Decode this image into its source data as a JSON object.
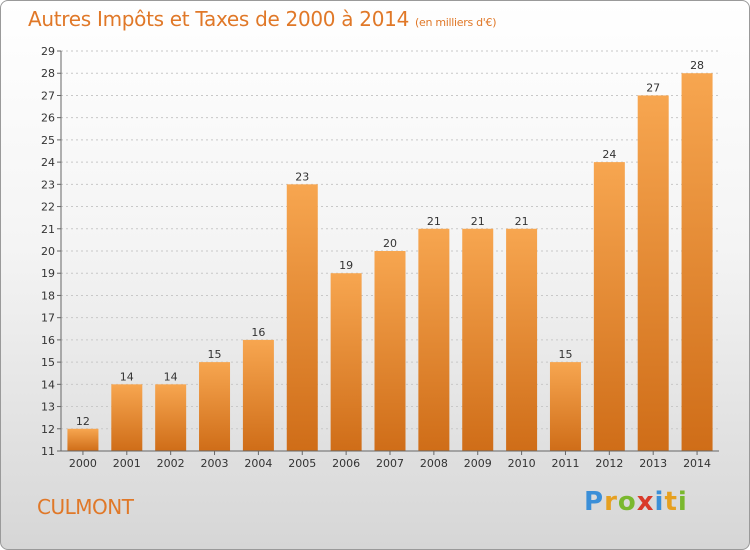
{
  "title": "Autres Impôts et Taxes de 2000 à 2014",
  "unit": "(en milliers d'€)",
  "place": "CULMONT",
  "logo": {
    "letters": [
      "P",
      "r",
      "o",
      "x",
      "i",
      "t",
      "i"
    ],
    "colors": [
      "#3b8fd8",
      "#e6a020",
      "#7ab82e",
      "#d93a2a",
      "#3b8fd8",
      "#e6a020",
      "#7ab82e"
    ]
  },
  "colors": {
    "bar_top": "#f7a650",
    "bar_bottom": "#cf6d18",
    "text": "#e07828"
  },
  "chart_data": {
    "type": "bar",
    "title": "Autres Impôts et Taxes de 2000 à 2014",
    "subtitle": "(en milliers d'€)",
    "categories": [
      "2000",
      "2001",
      "2002",
      "2003",
      "2004",
      "2005",
      "2006",
      "2007",
      "2008",
      "2009",
      "2010",
      "2011",
      "2012",
      "2013",
      "2014"
    ],
    "values": [
      12,
      14,
      14,
      15,
      16,
      23,
      19,
      20,
      21,
      21,
      21,
      15,
      24,
      27,
      28
    ],
    "ylim": [
      11,
      29
    ],
    "yticks": [
      11,
      12,
      13,
      14,
      15,
      16,
      17,
      18,
      19,
      20,
      21,
      22,
      23,
      24,
      25,
      26,
      27,
      28,
      29
    ],
    "grid": "horizontal-dashed",
    "legend": "none"
  }
}
